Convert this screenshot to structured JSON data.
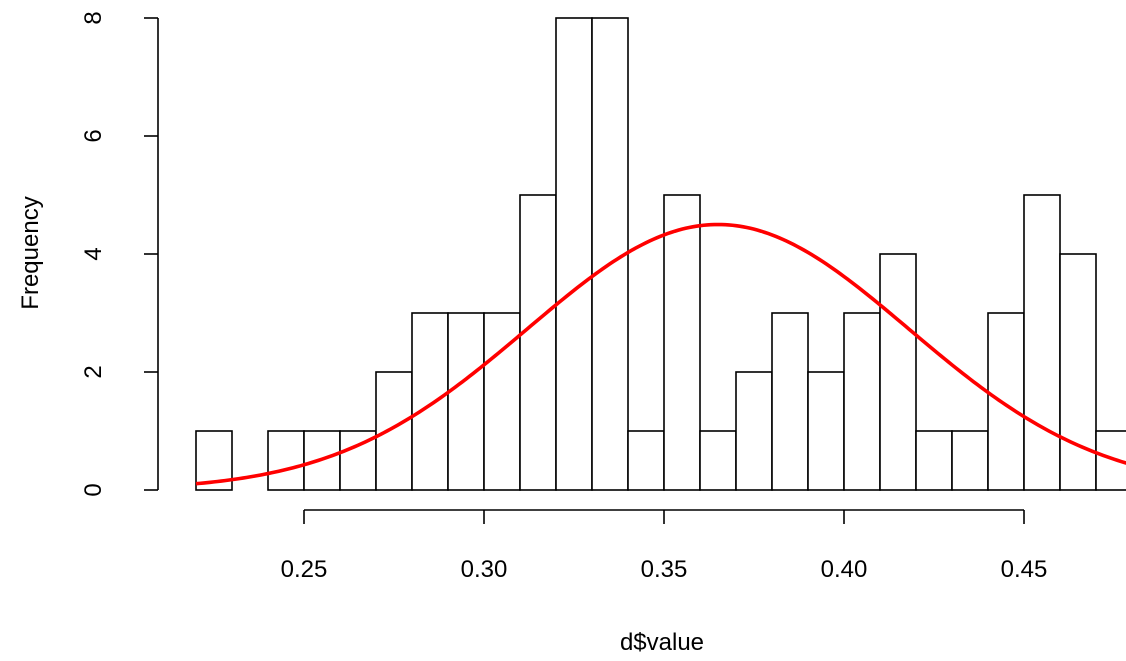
{
  "chart_data": {
    "type": "bar",
    "subtype": "histogram",
    "title": "",
    "xlabel": "d$value",
    "ylabel": "Frequency",
    "bin_width": 0.01,
    "bin_starts": [
      0.22,
      0.23,
      0.24,
      0.25,
      0.26,
      0.27,
      0.28,
      0.29,
      0.3,
      0.31,
      0.32,
      0.33,
      0.34,
      0.35,
      0.36,
      0.37,
      0.38,
      0.39,
      0.4,
      0.41,
      0.42,
      0.43,
      0.44,
      0.45,
      0.46,
      0.47
    ],
    "counts": [
      1,
      0,
      1,
      1,
      1,
      2,
      3,
      3,
      3,
      5,
      8,
      8,
      1,
      5,
      1,
      2,
      3,
      2,
      3,
      4,
      1,
      1,
      3,
      5,
      4,
      1
    ],
    "xlim": [
      0.22,
      0.48
    ],
    "ylim": [
      0,
      8
    ],
    "x_ticks": [
      "0.25",
      "0.30",
      "0.35",
      "0.40",
      "0.45"
    ],
    "y_ticks": [
      "0",
      "2",
      "4",
      "6",
      "8"
    ],
    "curve": {
      "type": "normal-density",
      "mean": 0.365,
      "sd": 0.053,
      "peak": 4.5,
      "color": "#ff0000"
    },
    "bar_fill": "#ffffff",
    "bar_stroke": "#000000",
    "grid": false
  }
}
